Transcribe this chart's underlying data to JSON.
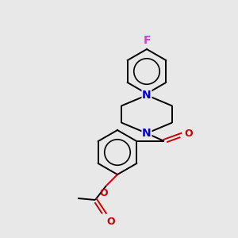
{
  "background_color": "#e8e8e8",
  "bond_color": "#000000",
  "N_color": "#0000cc",
  "O_color": "#cc0000",
  "F_color": "#cc44cc",
  "lw": 1.4,
  "font_size": 9,
  "figsize": [
    3.0,
    3.0
  ],
  "dpi": 100,
  "xlim": [
    0,
    300
  ],
  "ylim": [
    0,
    300
  ]
}
